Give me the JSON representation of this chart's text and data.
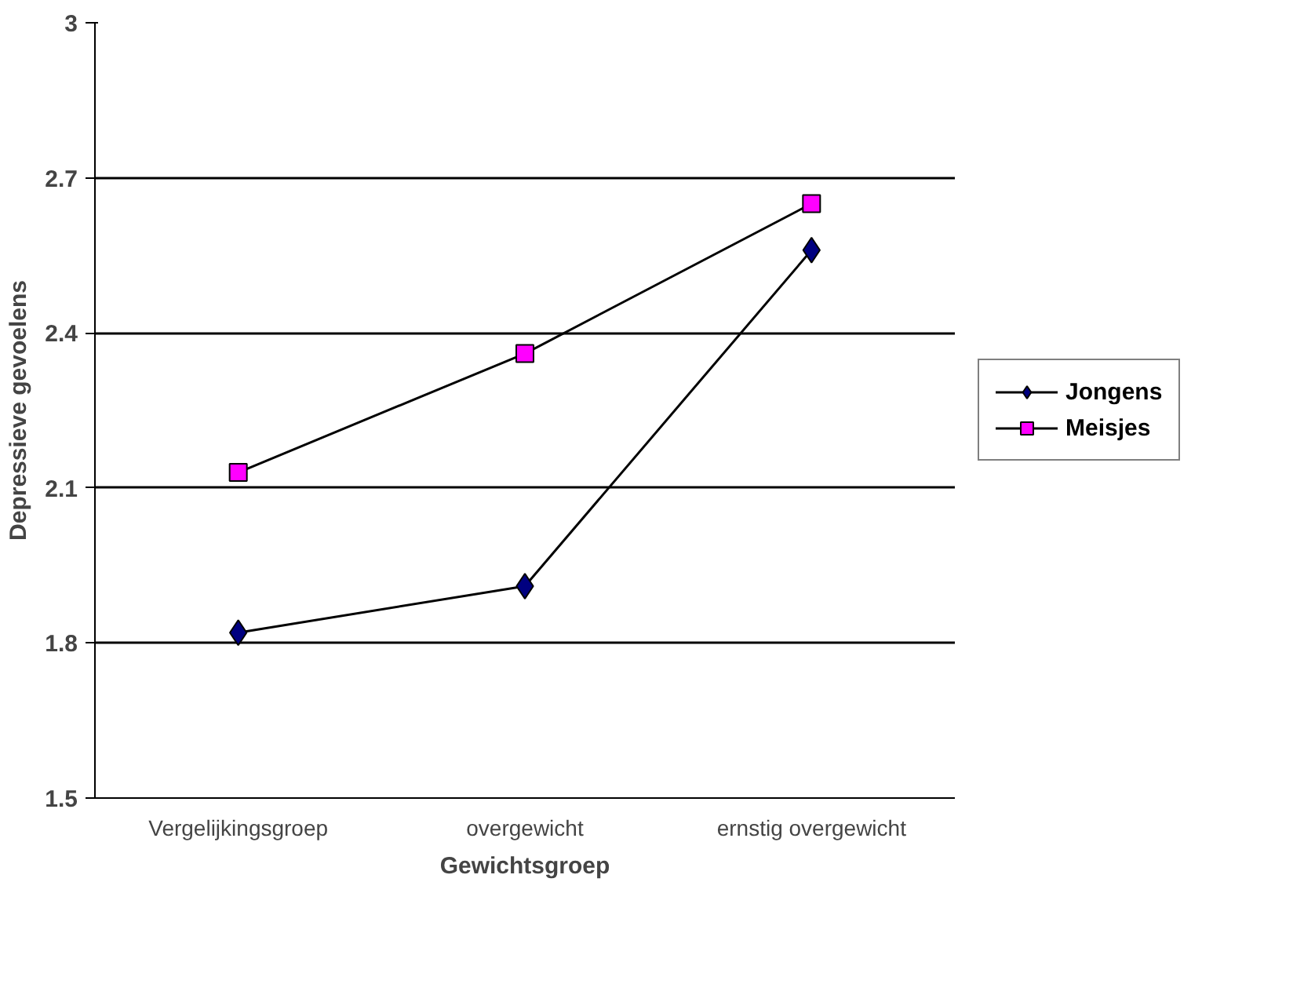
{
  "chart_data": {
    "type": "line",
    "xlabel": "Gewichtsgroep",
    "ylabel": "Depressieve gevoelens",
    "categories": [
      "Vergelijkingsgroep",
      "overgewicht",
      "ernstig overgewicht"
    ],
    "series": [
      {
        "name": "Jongens",
        "color": "#000080",
        "marker": "diamond",
        "values": [
          1.82,
          1.91,
          2.56
        ]
      },
      {
        "name": "Meisjes",
        "color": "#ff00ff",
        "marker": "square",
        "values": [
          2.13,
          2.36,
          2.65
        ]
      }
    ],
    "ylim": [
      1.5,
      3
    ],
    "yticks": [
      1.5,
      1.8,
      2.1,
      2.4,
      2.7,
      3
    ],
    "grid": "y",
    "legend": "right",
    "line_style": "solid"
  }
}
